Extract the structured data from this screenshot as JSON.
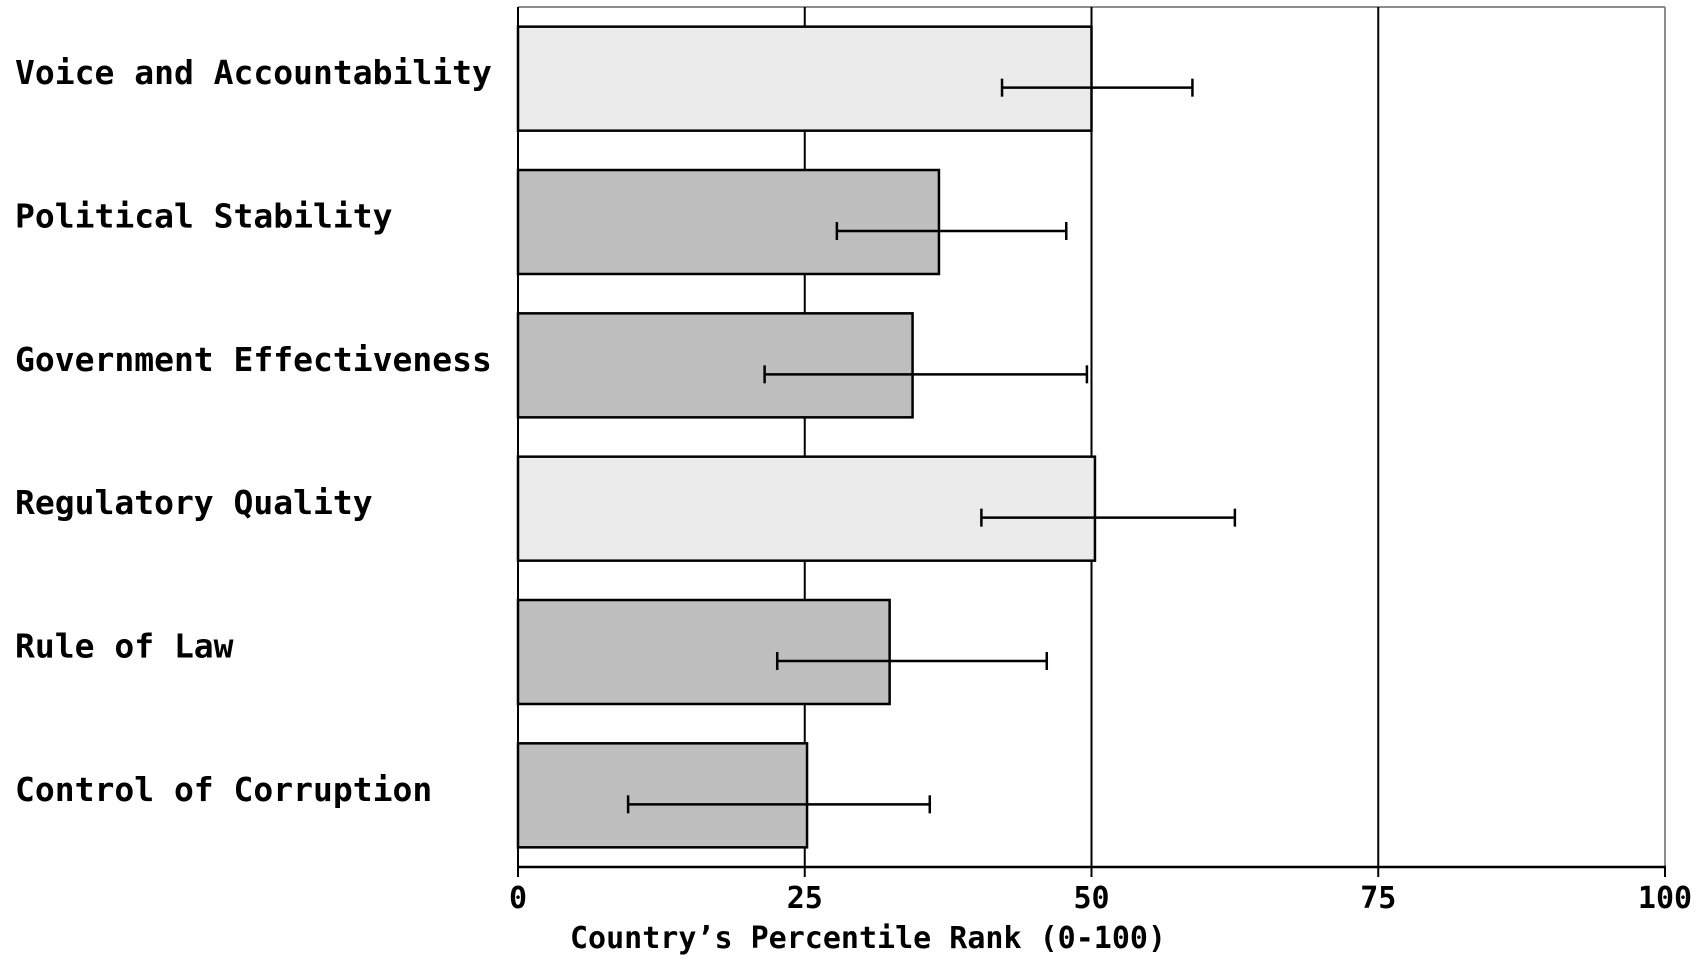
{
  "chart_data": {
    "type": "bar",
    "orientation": "horizontal",
    "categories": [
      "Voice and Accountability",
      "Political Stability",
      "Government Effectiveness",
      "Regulatory Quality",
      "Rule of Law",
      "Control of Corruption"
    ],
    "values": [
      50,
      36.7,
      34.4,
      50.3,
      32.4,
      25.2
    ],
    "error_low": [
      42.2,
      27.8,
      21.5,
      40.4,
      22.6,
      9.6
    ],
    "error_high": [
      58.8,
      47.8,
      49.6,
      62.5,
      46.1,
      35.9
    ],
    "bar_colors": [
      "#ebebeb",
      "#bebebe",
      "#bebebe",
      "#ebebeb",
      "#bebebe",
      "#bebebe"
    ],
    "xlim": [
      0,
      100
    ],
    "xticks": [
      0,
      25,
      50,
      75,
      100
    ],
    "xlabel": "Country’s Percentile Rank (0-100)",
    "grid": true,
    "title": ""
  }
}
